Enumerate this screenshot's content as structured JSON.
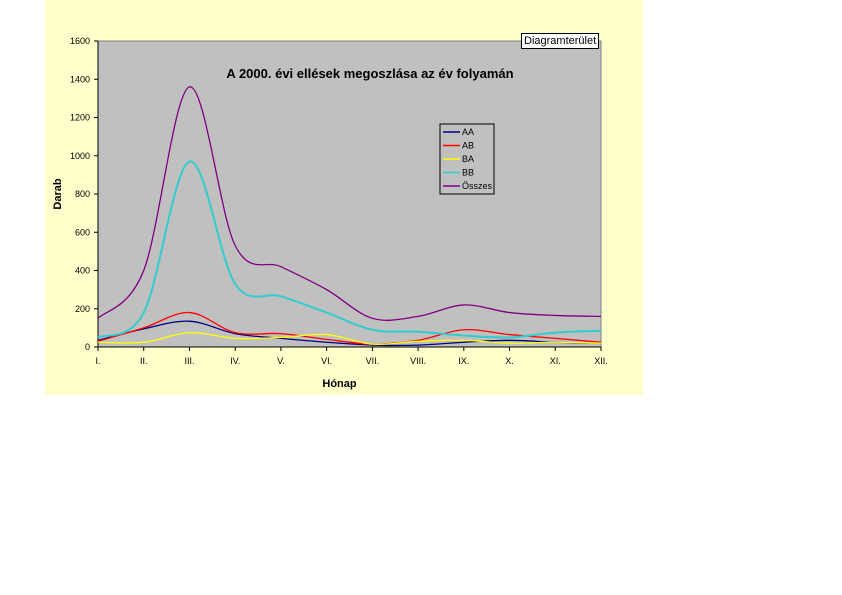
{
  "tooltip": "Diagramterület",
  "chart_data": {
    "type": "line",
    "title": "A 2000. évi ellések megoszlása az év folyamán",
    "xlabel": "Hónap",
    "ylabel": "Darab",
    "ylim": [
      0,
      1600
    ],
    "yticks": [
      0,
      200,
      400,
      600,
      800,
      1000,
      1200,
      1400,
      1600
    ],
    "categories": [
      "I.",
      "II.",
      "III.",
      "IV.",
      "V.",
      "VI.",
      "VII.",
      "VIII.",
      "IX.",
      "X.",
      "XI.",
      "XII."
    ],
    "grid": false,
    "smoothed": true,
    "legend": "upper-right inside plot",
    "plot_background": "#c0c0c0",
    "series": [
      {
        "name": "AA",
        "color": "#000080",
        "values": [
          35,
          95,
          135,
          70,
          45,
          25,
          10,
          10,
          25,
          35,
          25,
          20
        ]
      },
      {
        "name": "AB",
        "color": "#ff0000",
        "values": [
          30,
          100,
          180,
          75,
          70,
          40,
          15,
          35,
          90,
          65,
          45,
          25
        ]
      },
      {
        "name": "BA",
        "color": "#ffff00",
        "values": [
          25,
          25,
          75,
          45,
          50,
          65,
          15,
          30,
          35,
          20,
          25,
          20
        ]
      },
      {
        "name": "BB",
        "color": "#33cccc",
        "values": [
          50,
          180,
          970,
          330,
          265,
          180,
          90,
          80,
          60,
          50,
          75,
          85
        ]
      },
      {
        "name": "Összes",
        "color": "#800080",
        "values": [
          150,
          400,
          1360,
          530,
          420,
          300,
          150,
          160,
          220,
          180,
          165,
          160
        ]
      }
    ]
  }
}
